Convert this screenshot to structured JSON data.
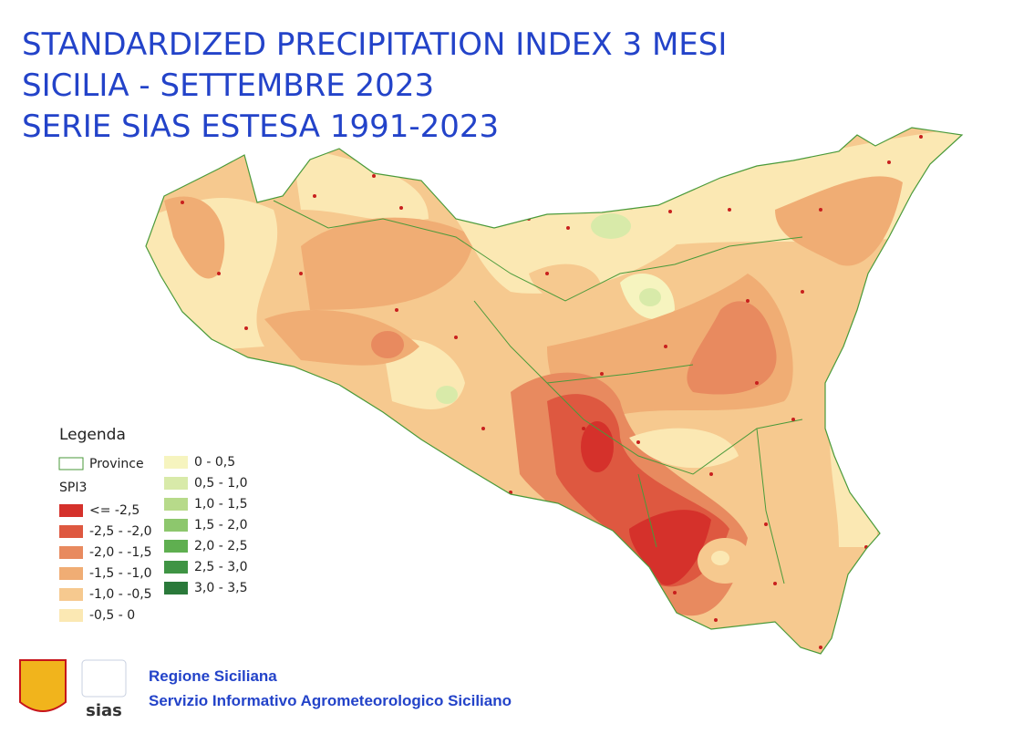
{
  "title": [
    "STANDARDIZED PRECIPITATION INDEX 3 MESI",
    "SICILIA - SETTEMBRE 2023",
    "SERIE SIAS ESTESA 1991-2023"
  ],
  "legend": {
    "title": "Legenda",
    "province": "Province",
    "spi_title": "SPI3",
    "classes": [
      {
        "label": "<= -2,5",
        "color": "#d5312b"
      },
      {
        "label": "-2,5 - -2,0",
        "color": "#de5840"
      },
      {
        "label": "-2,0 - -1,5",
        "color": "#e88a5f"
      },
      {
        "label": "-1,5 - -1,0",
        "color": "#f0ad74"
      },
      {
        "label": "-1,0 - -0,5",
        "color": "#f6c98f"
      },
      {
        "label": "-0,5 - 0",
        "color": "#fbe8b3"
      },
      {
        "label": "0 - 0,5",
        "color": "#f6f4bf"
      },
      {
        "label": "0,5 - 1,0",
        "color": "#d8eaa9"
      },
      {
        "label": "1,0 - 1,5",
        "color": "#b7da8a"
      },
      {
        "label": "1,5 - 2,0",
        "color": "#8dc76d"
      },
      {
        "label": "2,0 - 2,5",
        "color": "#5faf50"
      },
      {
        "label": "2,5 - 3,0",
        "color": "#3f9444"
      },
      {
        "label": "3,0 - 3,5",
        "color": "#2a793a"
      }
    ]
  },
  "footer": {
    "org": "Regione Siciliana",
    "service": "Servizio Informativo Agrometeorologico Siciliano",
    "logo": "sias"
  }
}
